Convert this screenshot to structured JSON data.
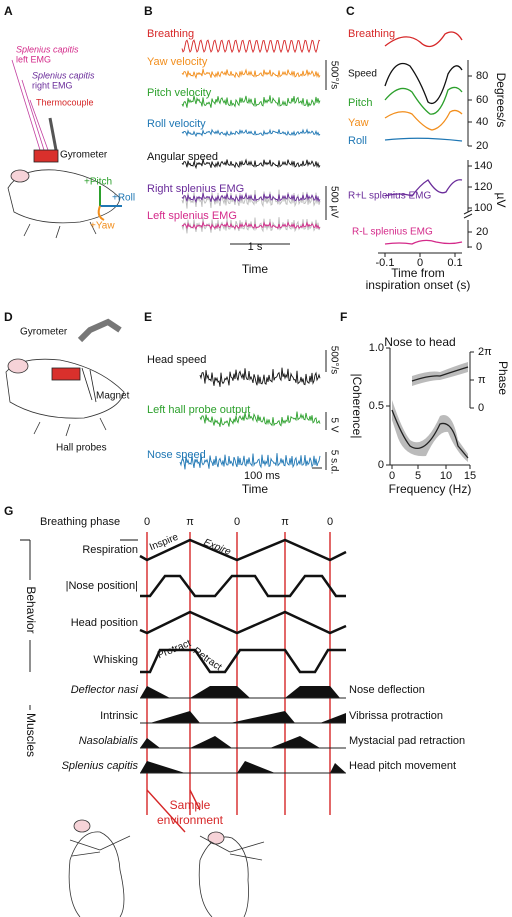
{
  "panel_a": {
    "label": "A",
    "emg_left": [
      "Splenius capitis",
      "left EMG"
    ],
    "emg_right": [
      "Splenius capitis",
      "right EMG"
    ],
    "thermocouple": "Thermocouple",
    "gyrometer": "Gyrometer",
    "axes": [
      "+Pitch",
      "+Roll",
      "+Yaw"
    ]
  },
  "panel_b": {
    "label": "B",
    "traces": [
      "Breathing",
      "Yaw velocity",
      "Pitch velocity",
      "Roll velocity",
      "Angular speed",
      "Right splenius EMG",
      "Left splenius EMG"
    ],
    "scale_speed": "500°/s",
    "scale_emg": "500 µV",
    "scale_time": "1 s",
    "x_label": "Time"
  },
  "panel_c": {
    "label": "C",
    "traces": [
      "Breathing",
      "Speed",
      "Pitch",
      "Yaw",
      "Roll",
      "R+L splenius EMG",
      "R-L splenius EMG"
    ],
    "speed_ticks": [
      "80",
      "60",
      "40",
      "20"
    ],
    "speed_unit": "Degrees/s",
    "emg_ticks": [
      "140",
      "120",
      "100",
      "20",
      "0"
    ],
    "emg_unit": "µV",
    "x_ticks": [
      "-0.1",
      "0",
      "0.1"
    ],
    "x_label": [
      "Time from",
      "inspiration onset (s)"
    ]
  },
  "panel_d": {
    "label": "D",
    "gyrometer": "Gyrometer",
    "magnet": "Magnet",
    "hall_probes": "Hall probes"
  },
  "panel_e": {
    "label": "E",
    "traces": [
      "Head speed",
      "Left hall probe output",
      "Nose speed"
    ],
    "scale_labels": [
      "500°/s",
      "5 V",
      "5 s.d."
    ],
    "scale_time": "100 ms",
    "x_label": "Time"
  },
  "panel_f": {
    "label": "F",
    "title": "Nose to head",
    "y_label": "|Coherence|",
    "y_ticks": [
      "1.0",
      "0.5",
      "0"
    ],
    "y2_label": "Phase",
    "y2_ticks": [
      "2π",
      "π",
      "0"
    ],
    "x_ticks": [
      "0",
      "5",
      "10",
      "15"
    ],
    "x_label": "Frequency (Hz)"
  },
  "panel_g": {
    "label": "G",
    "phase_title": "Breathing phase",
    "phases": [
      "0",
      "π",
      "0",
      "π",
      "0"
    ],
    "group_behavior": "Behavior",
    "group_muscles": "Muscles",
    "behaviors": [
      "Respiration",
      "|Nose position|",
      "Head position",
      "Whisking"
    ],
    "phase_notes": [
      "Inspire",
      "Expire",
      "Protract",
      "Retract"
    ],
    "muscles": [
      "Deflector nasi",
      "Intrinsic",
      "Nasolabialis",
      "Splenius capitis"
    ],
    "functions": [
      "Nose deflection",
      "Vibrissa protraction",
      "Mystacial pad retraction",
      "Head pitch movement"
    ],
    "sample": [
      "Sample",
      "environment"
    ]
  }
}
